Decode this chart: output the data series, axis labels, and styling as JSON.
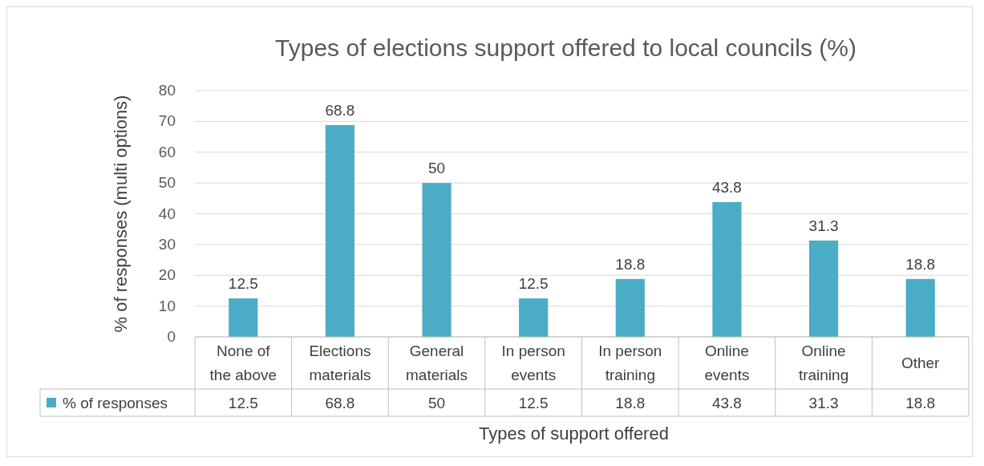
{
  "chart_data": {
    "type": "bar",
    "title": "Types of elections support offered to local councils (%)",
    "xlabel": "Types of support offered",
    "ylabel": "% of responses (multi options)",
    "categories": [
      "None of the above",
      "Elections materials",
      "General materials",
      "In person events",
      "In person training",
      "Online events",
      "Online training",
      "Other"
    ],
    "series": [
      {
        "name": "% of responses",
        "color": "#4bacc6",
        "values": [
          12.5,
          68.8,
          50,
          12.5,
          18.8,
          43.8,
          31.3,
          18.8
        ]
      }
    ],
    "annotations": [
      "12.5",
      "68.8",
      "50",
      "12.5",
      "18.8",
      "43.8",
      "31.3",
      "18.8"
    ],
    "ylim": [
      0,
      80
    ],
    "yticks": [
      0,
      10,
      20,
      30,
      40,
      50,
      60,
      70,
      80
    ],
    "grid": "y",
    "data_labels": true,
    "legend": "bottom"
  }
}
